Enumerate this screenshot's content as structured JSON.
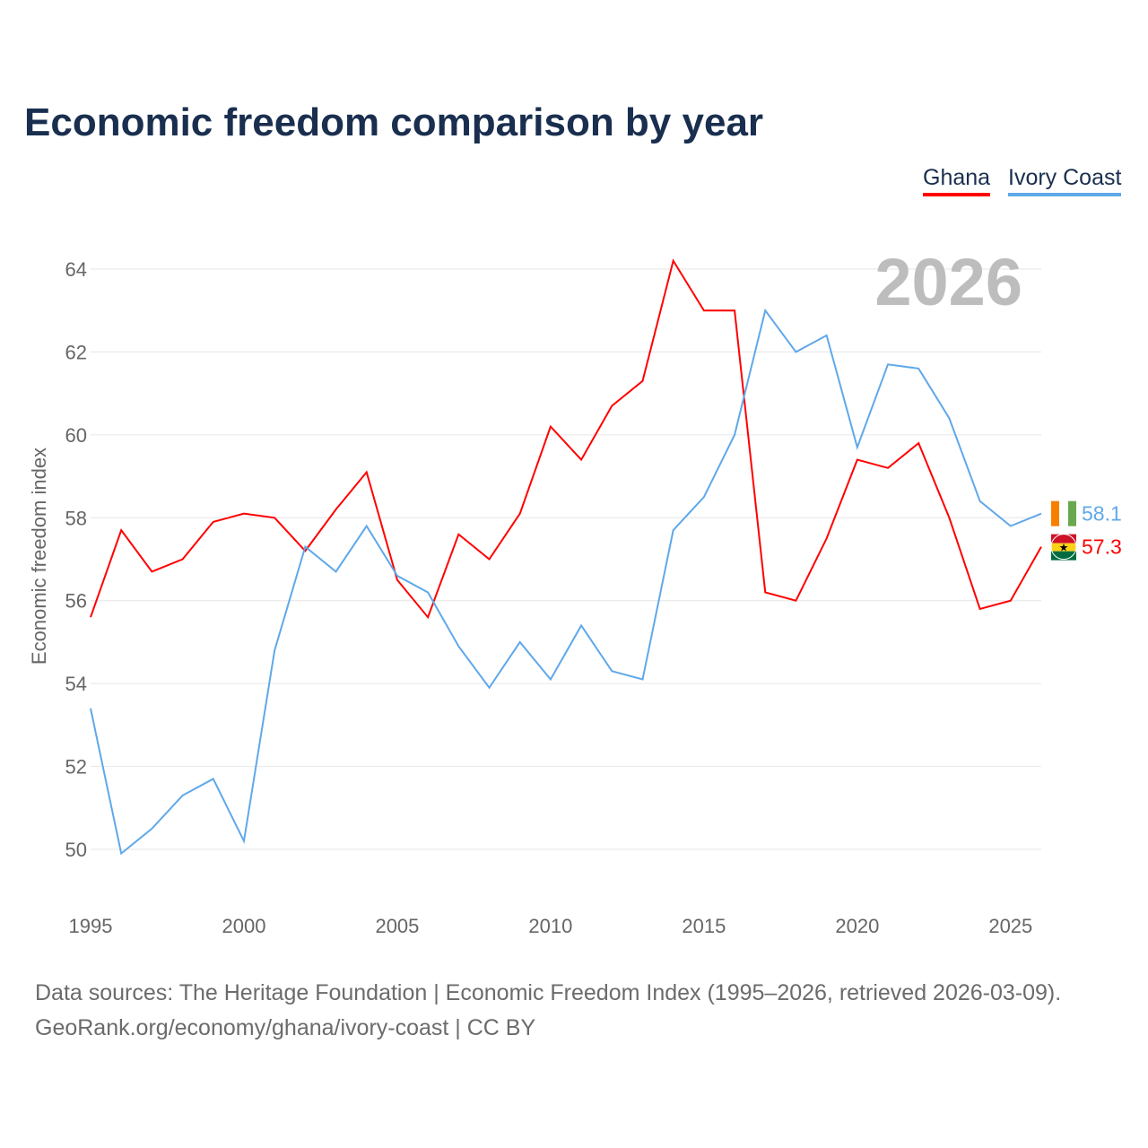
{
  "chart_data": {
    "type": "line",
    "title": "Economic freedom comparison by year",
    "xlabel": "",
    "ylabel": "Economic freedom index",
    "xlim": [
      1995,
      2026
    ],
    "ylim": [
      49,
      64.5
    ],
    "yticks": [
      50,
      52,
      54,
      56,
      58,
      60,
      62,
      64
    ],
    "xticks": [
      1995,
      2000,
      2005,
      2010,
      2015,
      2020,
      2025
    ],
    "grid": true,
    "legend_placement": "top-right",
    "year_label": "2026",
    "x": [
      1995,
      1996,
      1997,
      1998,
      1999,
      2000,
      2001,
      2002,
      2003,
      2004,
      2005,
      2006,
      2007,
      2008,
      2009,
      2010,
      2011,
      2012,
      2013,
      2014,
      2015,
      2016,
      2017,
      2018,
      2019,
      2020,
      2021,
      2022,
      2023,
      2024,
      2025,
      2026
    ],
    "series": [
      {
        "name": "Ghana",
        "color": "#ff0000",
        "end_label": "57.3",
        "values": [
          55.6,
          57.7,
          56.7,
          57.0,
          57.9,
          58.1,
          58.0,
          57.2,
          58.2,
          59.1,
          56.5,
          55.6,
          57.6,
          57.0,
          58.1,
          60.2,
          59.4,
          60.7,
          61.3,
          64.2,
          63.0,
          63.0,
          56.2,
          56.0,
          57.5,
          59.4,
          59.2,
          59.8,
          58.0,
          55.8,
          56.0,
          57.3
        ]
      },
      {
        "name": "Ivory Coast",
        "color": "#5fa8ea",
        "end_label": "58.1",
        "values": [
          53.4,
          49.9,
          50.5,
          51.3,
          51.7,
          50.2,
          54.8,
          57.3,
          56.7,
          57.8,
          56.6,
          56.2,
          54.9,
          53.9,
          55.0,
          54.1,
          55.4,
          54.3,
          54.1,
          57.7,
          58.5,
          60.0,
          63.0,
          62.0,
          62.4,
          59.7,
          61.7,
          61.6,
          60.4,
          58.4,
          57.8,
          58.1
        ]
      }
    ]
  },
  "footer": {
    "line1": "Data sources: The Heritage Foundation | Economic Freedom Index (1995–2026, retrieved 2026-03-09).",
    "line2": "GeoRank.org/economy/ghana/ivory-coast | CC BY"
  }
}
